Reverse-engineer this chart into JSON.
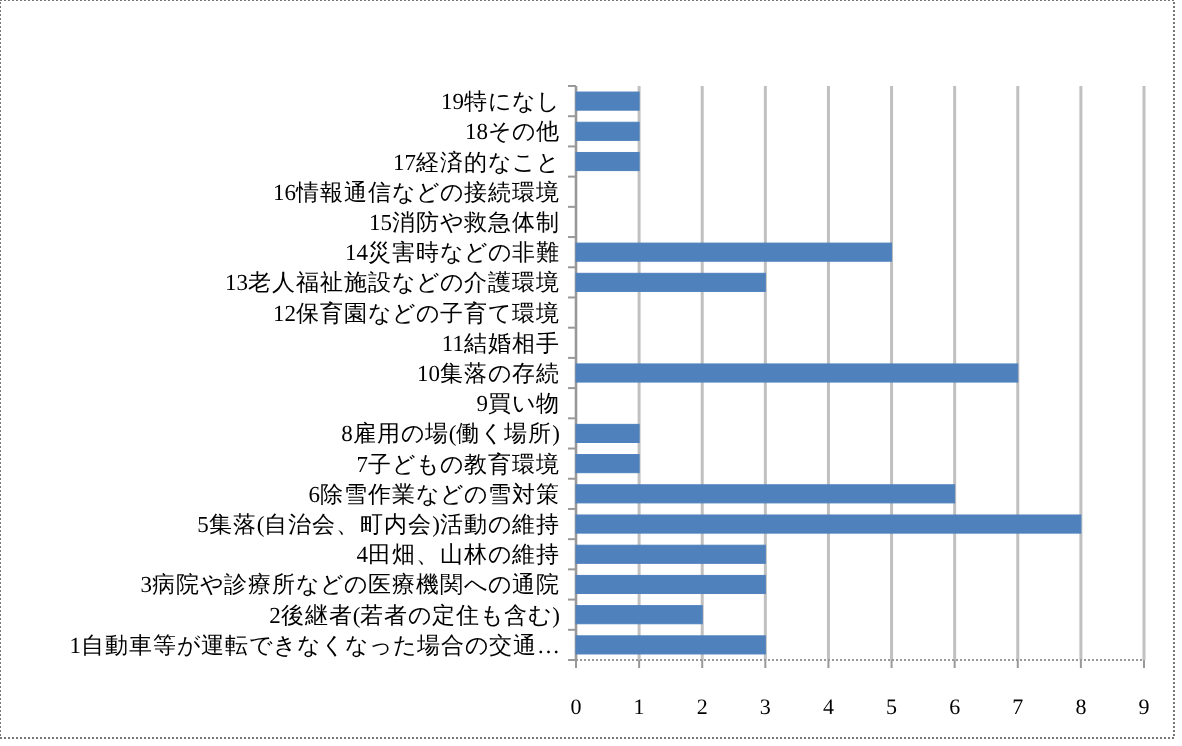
{
  "chart_data": {
    "type": "bar",
    "orientation": "horizontal",
    "categories": [
      "19特になし",
      "18その他",
      "17経済的なこと",
      "16情報通信などの接続環境",
      "15消防や救急体制",
      "14災害時などの非難",
      "13老人福祉施設などの介護環境",
      "12保育園などの子育て環境",
      "11結婚相手",
      "10集落の存続",
      "9買い物",
      "8雇用の場(働く場所)",
      "7子どもの教育環境",
      "6除雪作業などの雪対策",
      "5集落(自治会、町内会)活動の維持",
      "4田畑、山林の維持",
      "3病院や診療所などの医療機関への通院",
      "2後継者(若者の定住も含む)",
      "1自動車等が運転できなくなった場合の交通…"
    ],
    "values": [
      1,
      1,
      1,
      0,
      0,
      5,
      3,
      0,
      0,
      7,
      0,
      1,
      1,
      6,
      8,
      3,
      3,
      2,
      3
    ],
    "color": "#4f81bd",
    "xlim": [
      0,
      9
    ],
    "xticks": [
      0,
      1,
      2,
      3,
      4,
      5,
      6,
      7,
      8,
      9
    ],
    "grid": "x"
  }
}
